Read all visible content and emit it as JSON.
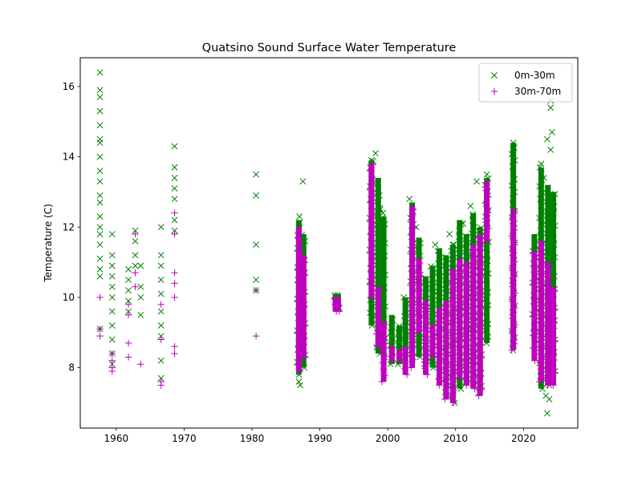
{
  "chart_data": {
    "type": "scatter",
    "title": "Quatsino Sound Surface Water Temperature",
    "xlabel": "",
    "ylabel": "Temperature (C)",
    "xlim": [
      1954.7,
      2028.0
    ],
    "ylim": [
      6.28,
      16.82
    ],
    "xticks": [
      1960,
      1970,
      1980,
      1990,
      2000,
      2010,
      2020
    ],
    "yticks": [
      8,
      10,
      12,
      14,
      16
    ],
    "legend_position": "top-right",
    "series": [
      {
        "name": "0m-30m",
        "marker": "x",
        "color": "#008000",
        "points": [
          [
            1957.6,
            16.4
          ],
          [
            1957.6,
            15.9
          ],
          [
            1957.6,
            15.7
          ],
          [
            1957.6,
            15.3
          ],
          [
            1957.6,
            14.9
          ],
          [
            1957.6,
            14.5
          ],
          [
            1957.6,
            14.4
          ],
          [
            1957.6,
            14.0
          ],
          [
            1957.6,
            13.6
          ],
          [
            1957.6,
            13.3
          ],
          [
            1957.6,
            12.9
          ],
          [
            1957.6,
            12.7
          ],
          [
            1957.6,
            12.3
          ],
          [
            1957.6,
            12.0
          ],
          [
            1957.6,
            11.8
          ],
          [
            1957.6,
            11.5
          ],
          [
            1957.6,
            11.1
          ],
          [
            1957.6,
            10.8
          ],
          [
            1957.6,
            10.6
          ],
          [
            1957.6,
            9.1
          ],
          [
            1959.4,
            11.8
          ],
          [
            1959.4,
            11.2
          ],
          [
            1959.4,
            10.9
          ],
          [
            1959.4,
            10.6
          ],
          [
            1959.4,
            10.3
          ],
          [
            1959.4,
            10.0
          ],
          [
            1959.4,
            9.6
          ],
          [
            1959.4,
            9.2
          ],
          [
            1959.4,
            8.8
          ],
          [
            1959.4,
            8.4
          ],
          [
            1959.4,
            8.1
          ],
          [
            1961.8,
            10.8
          ],
          [
            1961.8,
            10.5
          ],
          [
            1961.8,
            10.2
          ],
          [
            1961.8,
            9.9
          ],
          [
            1961.8,
            9.6
          ],
          [
            1962.8,
            11.9
          ],
          [
            1962.8,
            11.6
          ],
          [
            1962.8,
            11.2
          ],
          [
            1962.8,
            10.9
          ],
          [
            1963.6,
            10.9
          ],
          [
            1963.6,
            10.3
          ],
          [
            1963.6,
            10.0
          ],
          [
            1963.6,
            9.5
          ],
          [
            1966.6,
            12.0
          ],
          [
            1966.6,
            11.2
          ],
          [
            1966.6,
            10.9
          ],
          [
            1966.6,
            10.5
          ],
          [
            1966.6,
            10.1
          ],
          [
            1966.6,
            9.6
          ],
          [
            1966.6,
            9.2
          ],
          [
            1966.6,
            8.9
          ],
          [
            1966.6,
            8.2
          ],
          [
            1966.6,
            7.7
          ],
          [
            1968.6,
            14.3
          ],
          [
            1968.6,
            13.7
          ],
          [
            1968.6,
            13.4
          ],
          [
            1968.6,
            13.1
          ],
          [
            1968.6,
            12.8
          ],
          [
            1968.6,
            12.2
          ],
          [
            1968.6,
            11.9
          ],
          [
            1980.6,
            13.5
          ],
          [
            1980.6,
            12.9
          ],
          [
            1980.6,
            11.5
          ],
          [
            1980.6,
            10.5
          ],
          [
            1980.6,
            10.2
          ],
          [
            1987.5,
            13.3
          ],
          [
            1987.0,
            12.3
          ],
          [
            1986.9,
            7.6
          ],
          [
            1987.1,
            7.5
          ],
          [
            1997.6,
            13.9
          ],
          [
            1998.2,
            14.1
          ],
          [
            1998.9,
            12.5
          ],
          [
            1999.3,
            12.4
          ],
          [
            2003.2,
            12.8
          ],
          [
            2004.2,
            12.0
          ],
          [
            2007.0,
            11.5
          ],
          [
            2008.6,
            11.0
          ],
          [
            2009.1,
            11.8
          ],
          [
            2009.6,
            11.5
          ],
          [
            2011.1,
            12.1
          ],
          [
            2012.2,
            12.6
          ],
          [
            2013.1,
            13.3
          ],
          [
            2014.6,
            13.5
          ],
          [
            2018.5,
            14.4
          ],
          [
            2018.5,
            14.2
          ],
          [
            2018.5,
            13.2
          ],
          [
            2018.5,
            12.6
          ],
          [
            2022.6,
            13.8
          ],
          [
            2023.0,
            13.4
          ],
          [
            2023.5,
            14.5
          ],
          [
            2024.0,
            15.6
          ],
          [
            2024.0,
            15.4
          ],
          [
            2024.2,
            14.7
          ],
          [
            2024.0,
            14.2
          ],
          [
            2023.3,
            7.2
          ],
          [
            2023.5,
            6.7
          ],
          [
            2023.8,
            7.1
          ]
        ],
        "segments": [
          [
            1986.9,
            7.8,
            12.2
          ],
          [
            1987.6,
            8.0,
            11.8
          ],
          [
            1992.3,
            9.7,
            10.1
          ],
          [
            1992.7,
            9.7,
            10.1
          ],
          [
            1997.6,
            9.2,
            13.9
          ],
          [
            1998.6,
            8.4,
            13.4
          ],
          [
            1999.4,
            8.3,
            12.3
          ],
          [
            2000.6,
            8.1,
            9.5
          ],
          [
            2001.7,
            8.1,
            9.2
          ],
          [
            2002.6,
            8.2,
            10.0
          ],
          [
            2003.6,
            8.3,
            12.7
          ],
          [
            2004.6,
            8.3,
            11.7
          ],
          [
            2005.6,
            8.1,
            10.6
          ],
          [
            2006.6,
            8.0,
            10.9
          ],
          [
            2007.6,
            7.9,
            11.4
          ],
          [
            2008.6,
            7.3,
            11.2
          ],
          [
            2009.6,
            7.0,
            11.5
          ],
          [
            2010.6,
            7.4,
            12.2
          ],
          [
            2011.6,
            7.6,
            11.8
          ],
          [
            2012.6,
            7.5,
            12.4
          ],
          [
            2013.6,
            7.3,
            12.0
          ],
          [
            2014.6,
            8.7,
            13.4
          ],
          [
            2018.5,
            8.5,
            14.4
          ],
          [
            2021.6,
            8.8,
            11.8
          ],
          [
            2022.6,
            7.4,
            13.7
          ],
          [
            2023.6,
            7.5,
            13.2
          ],
          [
            2024.4,
            7.9,
            13.0
          ]
        ]
      },
      {
        "name": "30m-70m",
        "marker": "+",
        "color": "#bf00bf",
        "points": [
          [
            1957.6,
            10.0
          ],
          [
            1957.6,
            9.1
          ],
          [
            1957.6,
            8.9
          ],
          [
            1959.4,
            8.4
          ],
          [
            1959.4,
            8.2
          ],
          [
            1959.4,
            8.0
          ],
          [
            1959.4,
            7.9
          ],
          [
            1961.8,
            9.8
          ],
          [
            1961.8,
            9.5
          ],
          [
            1961.8,
            8.7
          ],
          [
            1961.8,
            8.3
          ],
          [
            1962.8,
            11.8
          ],
          [
            1962.8,
            10.7
          ],
          [
            1962.8,
            10.3
          ],
          [
            1963.6,
            8.1
          ],
          [
            1966.6,
            9.8
          ],
          [
            1966.6,
            8.8
          ],
          [
            1966.6,
            7.6
          ],
          [
            1966.6,
            7.5
          ],
          [
            1968.6,
            12.4
          ],
          [
            1968.6,
            11.8
          ],
          [
            1968.6,
            10.7
          ],
          [
            1968.6,
            10.4
          ],
          [
            1968.6,
            10.0
          ],
          [
            1968.6,
            8.6
          ],
          [
            1968.6,
            8.4
          ],
          [
            1980.6,
            10.2
          ],
          [
            1980.6,
            8.9
          ]
        ],
        "segments": [
          [
            1986.9,
            7.9,
            12.0
          ],
          [
            1987.6,
            8.3,
            11.2
          ],
          [
            1992.3,
            9.6,
            10.0
          ],
          [
            1992.7,
            9.6,
            10.0
          ],
          [
            1997.6,
            10.0,
            13.8
          ],
          [
            1998.6,
            8.6,
            10.3
          ],
          [
            1999.4,
            7.6,
            9.3
          ],
          [
            2000.6,
            8.2,
            8.6
          ],
          [
            2001.7,
            8.2,
            8.5
          ],
          [
            2002.6,
            7.8,
            8.6
          ],
          [
            2003.6,
            8.0,
            12.6
          ],
          [
            2004.6,
            9.0,
            11.1
          ],
          [
            2005.6,
            7.8,
            9.9
          ],
          [
            2006.6,
            8.3,
            9.2
          ],
          [
            2007.6,
            7.5,
            9.7
          ],
          [
            2008.6,
            7.1,
            9.9
          ],
          [
            2009.6,
            7.0,
            10.8
          ],
          [
            2010.6,
            7.7,
            11.1
          ],
          [
            2011.6,
            7.5,
            11.0
          ],
          [
            2012.6,
            7.4,
            11.5
          ],
          [
            2013.6,
            7.2,
            11.8
          ],
          [
            2014.6,
            11.6,
            13.3
          ],
          [
            2018.5,
            8.5,
            12.5
          ],
          [
            2021.6,
            8.2,
            11.3
          ],
          [
            2022.6,
            7.6,
            11.6
          ],
          [
            2023.6,
            7.5,
            11.0
          ],
          [
            2024.4,
            7.5,
            10.3
          ]
        ]
      }
    ]
  }
}
